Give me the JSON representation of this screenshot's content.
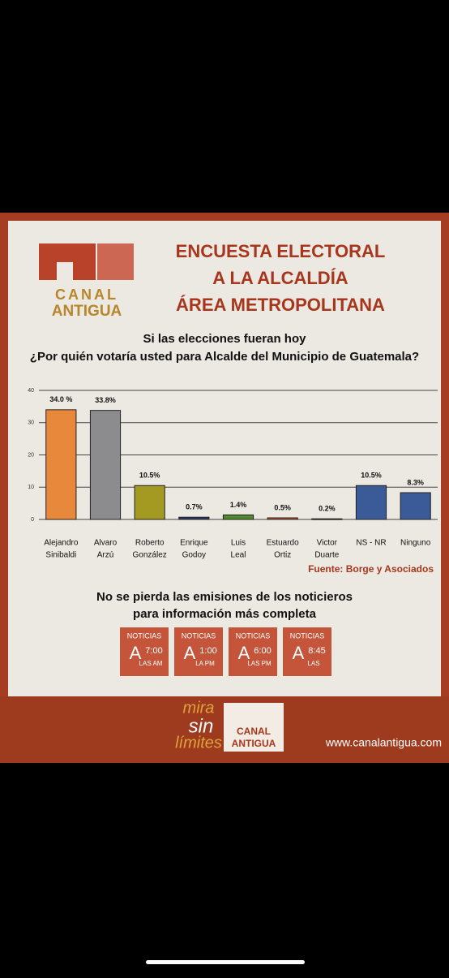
{
  "header": {
    "logo": [
      "CANAL",
      "ANTIGUA"
    ],
    "title": [
      "ENCUESTA ELECTORAL",
      "A LA ALCALDÍA",
      "ÁREA METROPOLITANA"
    ]
  },
  "chart_data": {
    "type": "bar",
    "title": [
      "Si las elecciones fueran hoy",
      "¿Por quién votaría usted para Alcalde del Municipio de Guatemala?"
    ],
    "categories": [
      [
        "Alejandro",
        "Sinibaldi"
      ],
      [
        "Alvaro",
        "Arzú"
      ],
      [
        "Roberto",
        "González"
      ],
      [
        "Enrique",
        "Godoy"
      ],
      [
        "Luis",
        "Leal"
      ],
      [
        "Estuardo",
        "Ortiz"
      ],
      [
        "Victor",
        "Duarte"
      ],
      [
        "NS - NR"
      ],
      [
        "Ninguno"
      ]
    ],
    "values": [
      34.0,
      33.8,
      10.5,
      0.7,
      1.4,
      0.5,
      0.2,
      10.5,
      8.3
    ],
    "value_labels": [
      "34.0 %",
      "33.8%",
      "10.5%",
      "0.7%",
      "1.4%",
      "0.5%",
      "0.2%",
      "10.5%",
      "8.3%"
    ],
    "colors": [
      "#e8883a",
      "#8c8c8e",
      "#a49a22",
      "#2e3a66",
      "#4f8a2c",
      "#cf5530",
      "#2a2f4e",
      "#3b5a98",
      "#3b5a98"
    ],
    "ylim": [
      0,
      40
    ],
    "yticks": [
      0,
      10,
      20,
      30,
      40
    ],
    "grid": true,
    "source": "Fuente: Borge y Asociados"
  },
  "promo": {
    "text": [
      "No se pierda las emisiones de los noticieros",
      "para información más completa"
    ],
    "boxes": [
      {
        "label": "NOTICIAS",
        "letter": "A",
        "time": "7:00",
        "sub": "LAS AM"
      },
      {
        "label": "NOTICIAS",
        "letter": "A",
        "time": "1:00",
        "sub": "LA PM"
      },
      {
        "label": "NOTICIAS",
        "letter": "A",
        "time": "6:00",
        "sub": "LAS PM"
      },
      {
        "label": "NOTICIAS",
        "letter": "A",
        "time": "8:45",
        "sub": "LAS"
      }
    ],
    "slogan": [
      "mira",
      "sin",
      "límites"
    ],
    "logo": [
      "CANAL",
      "ANTIGUA"
    ],
    "url": "www.canalantigua.com"
  }
}
